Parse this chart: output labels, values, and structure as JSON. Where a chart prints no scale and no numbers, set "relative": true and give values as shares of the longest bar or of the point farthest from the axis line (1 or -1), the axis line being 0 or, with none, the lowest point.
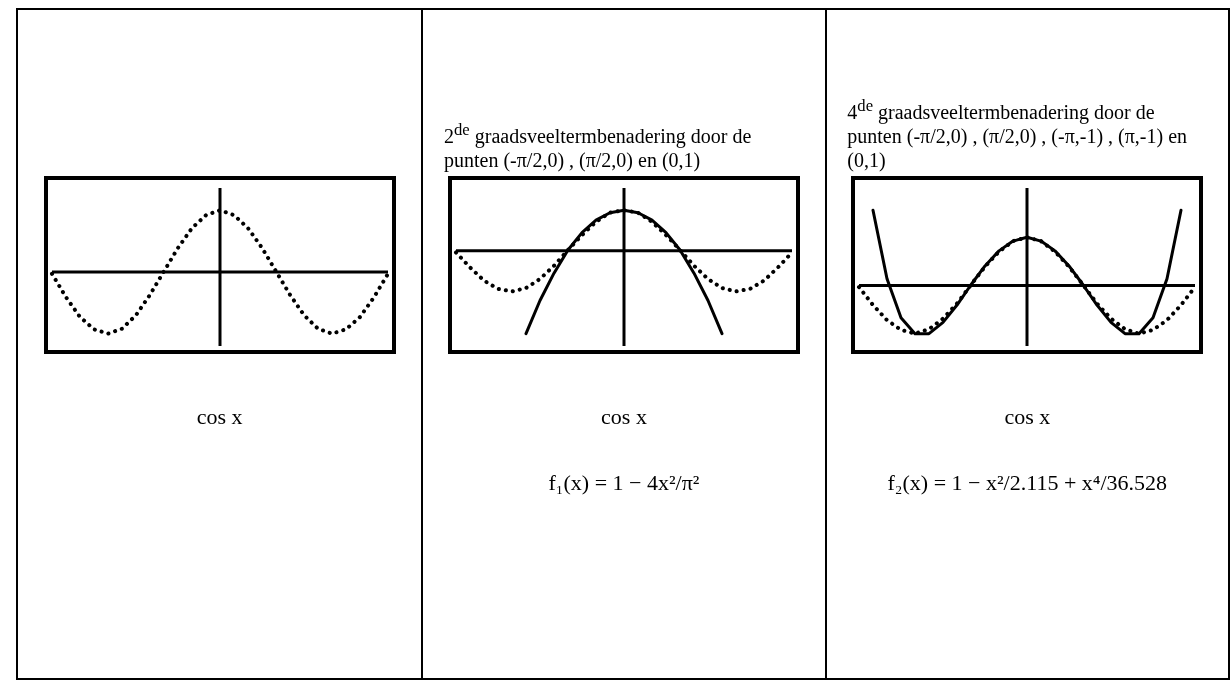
{
  "chart_data": [
    {
      "type": "line",
      "relative": true,
      "categories": [
        null,
        null,
        null,
        null,
        null,
        null,
        null,
        null,
        null,
        null,
        null,
        null,
        null,
        null,
        null,
        null,
        null,
        null,
        null,
        null,
        null,
        null,
        null,
        null,
        null
      ],
      "series": [
        {
          "color": "#000000",
          "line_style": "dotted",
          "values": [
            -0.03,
            -0.41,
            -0.73,
            -0.93,
            -1,
            -0.92,
            -0.7,
            -0.37,
            0.01,
            0.39,
            0.71,
            0.92,
            1,
            0.92,
            0.71,
            0.39,
            0.01,
            -0.37,
            -0.7,
            -0.92,
            -1,
            -0.93,
            -0.73,
            -0.41,
            -0.03
          ]
        }
      ],
      "annotations": [
        "cos x"
      ]
    },
    {
      "type": "line",
      "relative": true,
      "title": "2$^{de}$ graadsveeltermbenadering door de punten (-π/2,0) , (π/2,0) en (0,1)",
      "categories": [
        null,
        null,
        null,
        null,
        null,
        null,
        null,
        null,
        null,
        null,
        null,
        null,
        null,
        null,
        null,
        null,
        null,
        null,
        null,
        null,
        null,
        null,
        null,
        null,
        null
      ],
      "series": [
        {
          "color": "#000000",
          "line_style": "dotted",
          "values": [
            -0.02,
            -0.2,
            -0.36,
            -0.46,
            -0.49,
            -0.45,
            -0.34,
            -0.18,
            0.01,
            0.19,
            0.35,
            0.46,
            0.49,
            0.46,
            0.35,
            0.19,
            0.01,
            -0.18,
            -0.34,
            -0.45,
            -0.49,
            -0.46,
            -0.36,
            -0.2,
            -0.02
          ]
        },
        {
          "color": "#000000",
          "line_style": "solid",
          "values": [
            null,
            null,
            null,
            null,
            null,
            -1,
            -0.6,
            -0.27,
            0.01,
            0.22,
            0.37,
            0.46,
            0.49,
            0.46,
            0.37,
            0.22,
            0.01,
            -0.27,
            -0.6,
            -1,
            null,
            null,
            null,
            null,
            null
          ]
        }
      ],
      "annotations": [
        "cos x",
        "f₁(x) = 1 − 4x²/π²"
      ]
    },
    {
      "type": "line",
      "relative": true,
      "title": "4$^{de}$ graadsveeltermbenadering door de punten (-π/2,0) , (π/2,0) , (-π,-1) , (π,-1) en (0,1)",
      "categories": [
        null,
        null,
        null,
        null,
        null,
        null,
        null,
        null,
        null,
        null,
        null,
        null,
        null,
        null,
        null,
        null,
        null,
        null,
        null,
        null,
        null,
        null,
        null,
        null,
        null
      ],
      "series": [
        {
          "color": "#000000",
          "line_style": "dotted",
          "values": [
            -0.02,
            -0.26,
            -0.46,
            -0.59,
            -0.64,
            -0.58,
            -0.44,
            -0.24,
            0.01,
            0.25,
            0.45,
            0.59,
            0.64,
            0.59,
            0.45,
            0.25,
            0.01,
            -0.24,
            -0.44,
            -0.58,
            -0.64,
            -0.59,
            -0.46,
            -0.26,
            -0.02
          ]
        },
        {
          "color": "#000000",
          "line_style": "solid",
          "values": [
            null,
            1,
            0.09,
            -0.43,
            -0.64,
            -0.64,
            -0.49,
            -0.26,
            0.01,
            0.26,
            0.46,
            0.59,
            0.64,
            0.59,
            0.46,
            0.26,
            0.01,
            -0.26,
            -0.49,
            -0.64,
            -0.64,
            -0.43,
            0.09,
            1,
            null
          ]
        }
      ],
      "annotations": [
        "cos x",
        "f₂(x) = 1 − x²/2.115 + x⁴/36.528"
      ]
    }
  ]
}
